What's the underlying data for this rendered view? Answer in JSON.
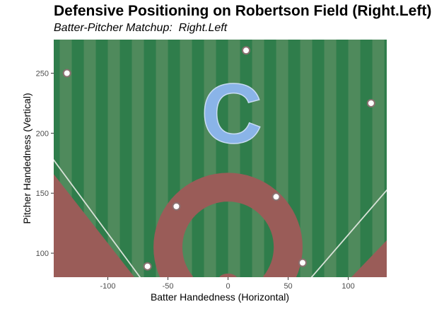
{
  "chart_data": {
    "type": "scatter",
    "title": "Defensive Positioning on Robertson Field (Right.Left)",
    "subtitle": "Batter-Pitcher Matchup:  Right.Left",
    "xlabel": "Batter Handedness (Horizontal)",
    "ylabel": "Pitcher Handedness (Vertical)",
    "xlim": [
      -145,
      132
    ],
    "ylim": [
      80,
      278
    ],
    "x_ticks": [
      -100,
      -50,
      0,
      50,
      100
    ],
    "y_ticks": [
      100,
      150,
      200,
      250
    ],
    "points": [
      {
        "x": -67,
        "y": 89
      },
      {
        "x": -43,
        "y": 139
      },
      {
        "x": 15,
        "y": 269
      },
      {
        "x": 40,
        "y": 147
      },
      {
        "x": 62,
        "y": 92
      },
      {
        "x": -134,
        "y": 250
      },
      {
        "x": 119,
        "y": 225
      }
    ],
    "logo_text": "C",
    "grid": false,
    "legend": "none",
    "colors": {
      "grass_dark": "#2f7d4b",
      "grass_light": "#4f8a5c",
      "dirt": "#9a5c58",
      "foul_territory": "#9cc2e6",
      "foul_line": "#d8e2d8",
      "logo": "#8ab4e8",
      "point_fill": "#ffffff",
      "point_stroke": "#8a7070"
    }
  }
}
